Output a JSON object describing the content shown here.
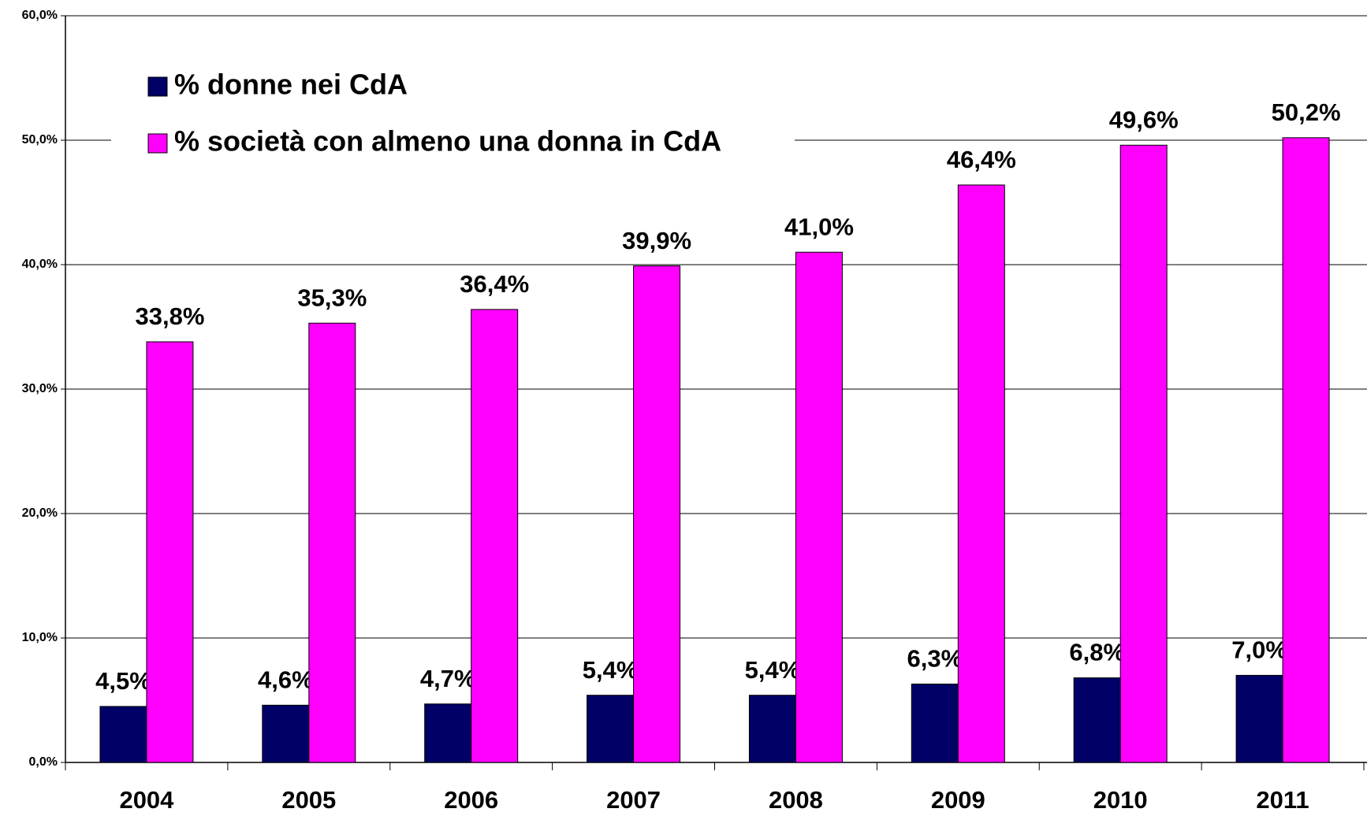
{
  "chart_data": {
    "type": "bar",
    "categories": [
      "2004",
      "2005",
      "2006",
      "2007",
      "2008",
      "2009",
      "2010",
      "2011"
    ],
    "series": [
      {
        "name": "% donne nei CdA",
        "color": "#000066",
        "values": [
          4.5,
          4.6,
          4.7,
          5.4,
          5.4,
          6.3,
          6.8,
          7.0
        ],
        "value_labels": [
          "4,5%",
          "4,6%",
          "4,7%",
          "5,4%",
          "5,4%",
          "6,3%",
          "6,8%",
          "7,0%"
        ]
      },
      {
        "name": "% società con almeno una donna in CdA",
        "color": "#ff00ff",
        "values": [
          33.8,
          35.3,
          36.4,
          39.9,
          41.0,
          46.4,
          49.6,
          50.2
        ],
        "value_labels": [
          "33,8%",
          "35,3%",
          "36,4%",
          "39,9%",
          "41,0%",
          "46,4%",
          "49,6%",
          "50,2%"
        ]
      }
    ],
    "ylim": [
      0,
      60
    ],
    "yticks": [
      {
        "value": 0,
        "label": "0,0%"
      },
      {
        "value": 10,
        "label": "10,0%"
      },
      {
        "value": 20,
        "label": "20,0%"
      },
      {
        "value": 30,
        "label": "30,0%"
      },
      {
        "value": 40,
        "label": "40,0%"
      },
      {
        "value": 50,
        "label": "50,0%"
      },
      {
        "value": 60,
        "label": "60,0%"
      }
    ],
    "grid": true,
    "legend": "upper-left"
  }
}
